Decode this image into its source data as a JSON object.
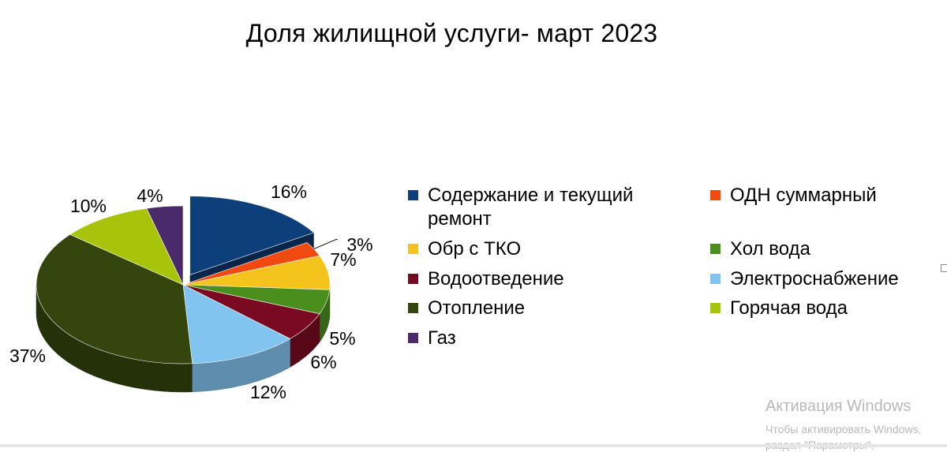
{
  "chart_data": {
    "type": "pie",
    "title": "Доля жилищной услуги- март 2023",
    "slices": [
      {
        "name": "Содержание и текущий ремонт",
        "value": 16,
        "label": "16%",
        "color": "#0d3f7a"
      },
      {
        "name": "ОДН суммарный",
        "value": 3,
        "label": "3%",
        "color": "#f04a10"
      },
      {
        "name": "Обр с ТКО",
        "value": 7,
        "label": "7%",
        "color": "#f5c41c"
      },
      {
        "name": "Хол вода",
        "value": 5,
        "label": "5%",
        "color": "#4a8f1e"
      },
      {
        "name": "Водоотведение",
        "value": 6,
        "label": "6%",
        "color": "#7a0a22"
      },
      {
        "name": "Электроснабжение",
        "value": 12,
        "label": "12%",
        "color": "#82c4f0"
      },
      {
        "name": "Отопление",
        "value": 37,
        "label": "37%",
        "color": "#34450d"
      },
      {
        "name": "Горячая вода",
        "value": 10,
        "label": "10%",
        "color": "#a8c40a"
      },
      {
        "name": "Газ",
        "value": 4,
        "label": "4%",
        "color": "#4a2a6a"
      }
    ],
    "exploded_slice": "Содержание и текущий ремонт",
    "style": "3d"
  },
  "watermark": {
    "title": "Активация Windows",
    "line1": "Чтобы активировать Windows,",
    "line2": "раздел \"Параметры\"."
  }
}
